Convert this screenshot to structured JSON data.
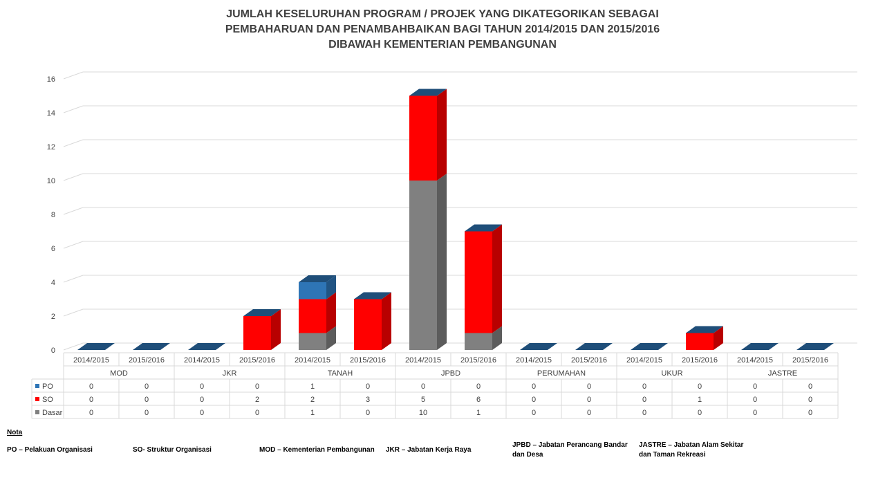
{
  "title": {
    "line1": "JUMLAH KESELURUHAN PROGRAM / PROJEK YANG DIKATEGORIKAN SEBAGAI",
    "line2": "PEMBAHARUAN DAN PENAMBAHBAIKAN BAGI TAHUN 2014/2015 DAN 2015/2016",
    "line3": "DIBAWAH KEMENTERIAN PEMBANGUNAN"
  },
  "chart_data": {
    "type": "bar",
    "stacked": true,
    "three_d": true,
    "groups": [
      "MOD",
      "JKR",
      "TANAH",
      "JPBD",
      "PERUMAHAN",
      "UKUR",
      "JASTRE"
    ],
    "years": [
      "2014/2015",
      "2015/2016"
    ],
    "series": [
      {
        "name": "PO",
        "color": "#2E75B6",
        "values": [
          0,
          0,
          0,
          0,
          1,
          0,
          0,
          0,
          0,
          0,
          0,
          0,
          0,
          0
        ]
      },
      {
        "name": "SO",
        "color": "#FF0000",
        "values": [
          0,
          0,
          0,
          2,
          2,
          3,
          5,
          6,
          0,
          0,
          0,
          1,
          0,
          0
        ]
      },
      {
        "name": "Dasar",
        "color": "#808080",
        "values": [
          0,
          0,
          0,
          0,
          1,
          0,
          10,
          1,
          0,
          0,
          0,
          0,
          0,
          0
        ]
      }
    ],
    "y_ticks": [
      0,
      2,
      4,
      6,
      8,
      10,
      12,
      14,
      16
    ],
    "ylim": [
      0,
      16
    ],
    "grid": true,
    "legend": "data-table"
  },
  "notes": {
    "heading": "Nota",
    "items": [
      "PO – Pelakuan Organisasi",
      "SO- Struktur Organisasi",
      "MOD – Kementerian Pembangunan",
      "JKR – Jabatan Kerja Raya",
      "JPBD – Jabatan Perancang Bandar dan Desa",
      "JASTRE – Jabatan Alam Sekitar dan Taman Rekreasi"
    ]
  },
  "colors": {
    "top_face": "#1F4E79",
    "grid": "#D9D9D9",
    "text": "#404040"
  }
}
